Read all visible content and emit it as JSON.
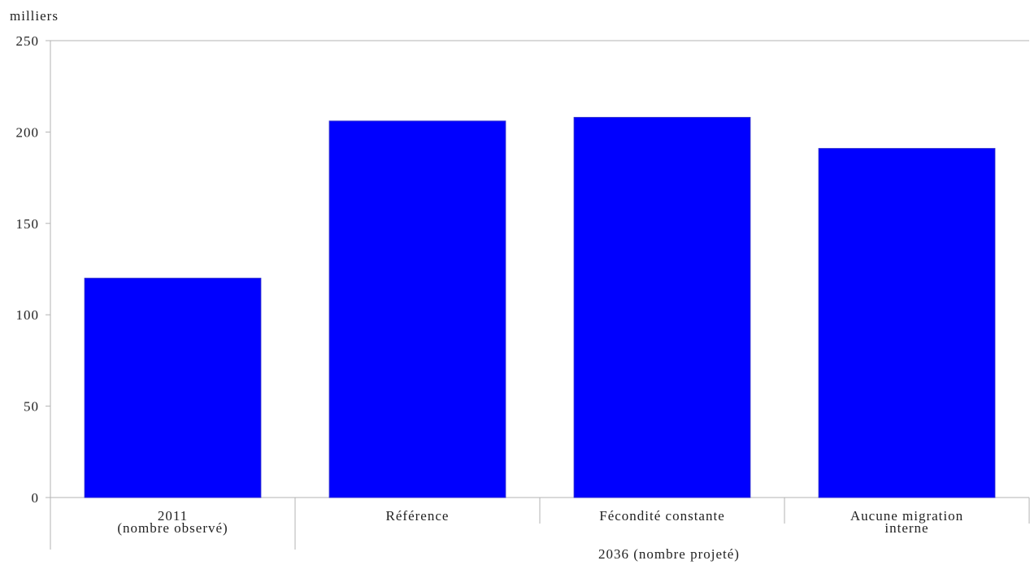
{
  "chart_data": {
    "type": "bar",
    "ylabel": "milliers",
    "ylim": [
      0,
      250
    ],
    "yticks": [
      0,
      50,
      100,
      150,
      200,
      250
    ],
    "grid": false,
    "bar_color": "#0000FF",
    "categories": [
      [
        "2011",
        "(nombre observé)"
      ],
      [
        "Référence"
      ],
      [
        "Fécondité constante"
      ],
      [
        "Aucune migration",
        "interne"
      ]
    ],
    "values": [
      120,
      206,
      208,
      191
    ],
    "group_label": "2036 (nombre projeté)"
  }
}
